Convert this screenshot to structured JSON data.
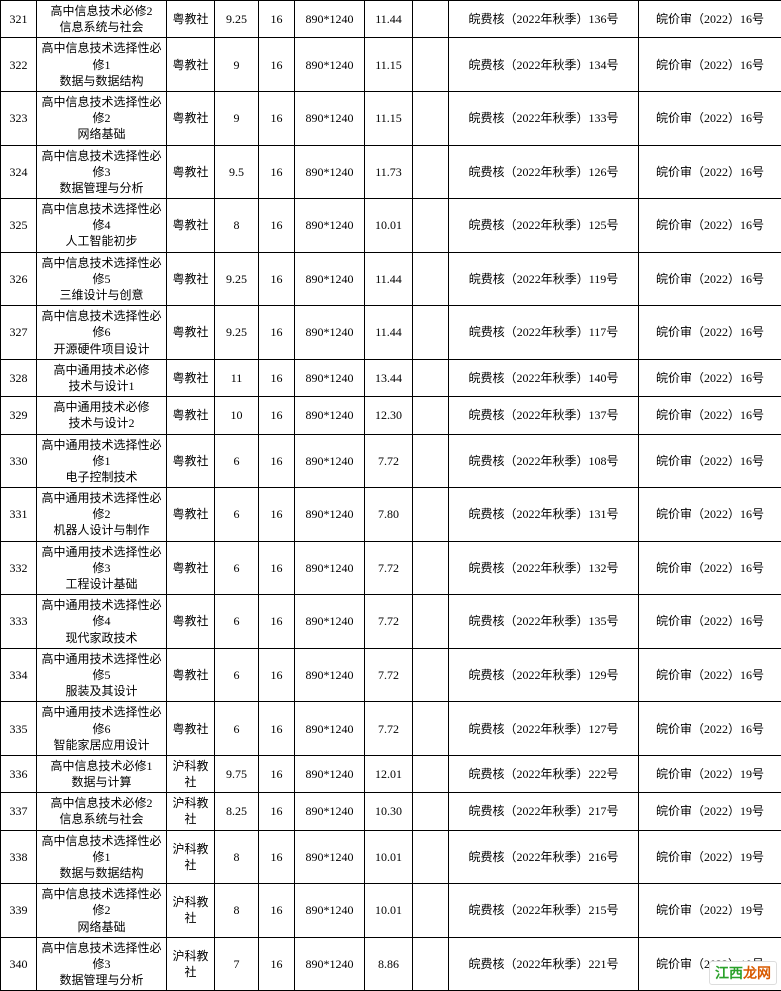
{
  "watermark": {
    "a": "江西",
    "b": "龙网"
  },
  "rows": [
    {
      "n": "321",
      "name": "高中信息技术必修2\n信息系统与社会",
      "pub": "粤教社",
      "v1": "9.25",
      "v2": "16",
      "size": "890*1240",
      "v3": "11.44",
      "blank": "",
      "doc": "皖费核（2022年秋季）136号",
      "appr": "皖价审（2022）16号"
    },
    {
      "n": "322",
      "name": "高中信息技术选择性必修1\n数据与数据结构",
      "pub": "粤教社",
      "v1": "9",
      "v2": "16",
      "size": "890*1240",
      "v3": "11.15",
      "blank": "",
      "doc": "皖费核（2022年秋季）134号",
      "appr": "皖价审（2022）16号"
    },
    {
      "n": "323",
      "name": "高中信息技术选择性必修2\n网络基础",
      "pub": "粤教社",
      "v1": "9",
      "v2": "16",
      "size": "890*1240",
      "v3": "11.15",
      "blank": "",
      "doc": "皖费核（2022年秋季）133号",
      "appr": "皖价审（2022）16号"
    },
    {
      "n": "324",
      "name": "高中信息技术选择性必修3\n数据管理与分析",
      "pub": "粤教社",
      "v1": "9.5",
      "v2": "16",
      "size": "890*1240",
      "v3": "11.73",
      "blank": "",
      "doc": "皖费核（2022年秋季）126号",
      "appr": "皖价审（2022）16号"
    },
    {
      "n": "325",
      "name": "高中信息技术选择性必修4\n人工智能初步",
      "pub": "粤教社",
      "v1": "8",
      "v2": "16",
      "size": "890*1240",
      "v3": "10.01",
      "blank": "",
      "doc": "皖费核（2022年秋季）125号",
      "appr": "皖价审（2022）16号"
    },
    {
      "n": "326",
      "name": "高中信息技术选择性必修5\n三维设计与创意",
      "pub": "粤教社",
      "v1": "9.25",
      "v2": "16",
      "size": "890*1240",
      "v3": "11.44",
      "blank": "",
      "doc": "皖费核（2022年秋季）119号",
      "appr": "皖价审（2022）16号"
    },
    {
      "n": "327",
      "name": "高中信息技术选择性必修6\n开源硬件项目设计",
      "pub": "粤教社",
      "v1": "9.25",
      "v2": "16",
      "size": "890*1240",
      "v3": "11.44",
      "blank": "",
      "doc": "皖费核（2022年秋季）117号",
      "appr": "皖价审（2022）16号"
    },
    {
      "n": "328",
      "name": "高中通用技术必修\n技术与设计1",
      "pub": "粤教社",
      "v1": "11",
      "v2": "16",
      "size": "890*1240",
      "v3": "13.44",
      "blank": "",
      "doc": "皖费核（2022年秋季）140号",
      "appr": "皖价审（2022）16号"
    },
    {
      "n": "329",
      "name": "高中通用技术必修\n技术与设计2",
      "pub": "粤教社",
      "v1": "10",
      "v2": "16",
      "size": "890*1240",
      "v3": "12.30",
      "blank": "",
      "doc": "皖费核（2022年秋季）137号",
      "appr": "皖价审（2022）16号"
    },
    {
      "n": "330",
      "name": "高中通用技术选择性必修1\n电子控制技术",
      "pub": "粤教社",
      "v1": "6",
      "v2": "16",
      "size": "890*1240",
      "v3": "7.72",
      "blank": "",
      "doc": "皖费核（2022年秋季）108号",
      "appr": "皖价审（2022）16号"
    },
    {
      "n": "331",
      "name": "高中通用技术选择性必修2\n机器人设计与制作",
      "pub": "粤教社",
      "v1": "6",
      "v2": "16",
      "size": "890*1240",
      "v3": "7.80",
      "blank": "",
      "doc": "皖费核（2022年秋季）131号",
      "appr": "皖价审（2022）16号"
    },
    {
      "n": "332",
      "name": "高中通用技术选择性必修3\n工程设计基础",
      "pub": "粤教社",
      "v1": "6",
      "v2": "16",
      "size": "890*1240",
      "v3": "7.72",
      "blank": "",
      "doc": "皖费核（2022年秋季）132号",
      "appr": "皖价审（2022）16号"
    },
    {
      "n": "333",
      "name": "高中通用技术选择性必修4\n现代家政技术",
      "pub": "粤教社",
      "v1": "6",
      "v2": "16",
      "size": "890*1240",
      "v3": "7.72",
      "blank": "",
      "doc": "皖费核（2022年秋季）135号",
      "appr": "皖价审（2022）16号"
    },
    {
      "n": "334",
      "name": "高中通用技术选择性必修5\n服装及其设计",
      "pub": "粤教社",
      "v1": "6",
      "v2": "16",
      "size": "890*1240",
      "v3": "7.72",
      "blank": "",
      "doc": "皖费核（2022年秋季）129号",
      "appr": "皖价审（2022）16号"
    },
    {
      "n": "335",
      "name": "高中通用技术选择性必修6\n智能家居应用设计",
      "pub": "粤教社",
      "v1": "6",
      "v2": "16",
      "size": "890*1240",
      "v3": "7.72",
      "blank": "",
      "doc": "皖费核（2022年秋季）127号",
      "appr": "皖价审（2022）16号"
    },
    {
      "n": "336",
      "name": "高中信息技术必修1\n数据与计算",
      "pub": "沪科教社",
      "v1": "9.75",
      "v2": "16",
      "size": "890*1240",
      "v3": "12.01",
      "blank": "",
      "doc": "皖费核（2022年秋季）222号",
      "appr": "皖价审（2022）19号"
    },
    {
      "n": "337",
      "name": "高中信息技术必修2\n信息系统与社会",
      "pub": "沪科教社",
      "v1": "8.25",
      "v2": "16",
      "size": "890*1240",
      "v3": "10.30",
      "blank": "",
      "doc": "皖费核（2022年秋季）217号",
      "appr": "皖价审（2022）19号"
    },
    {
      "n": "338",
      "name": "高中信息技术选择性必修1\n数据与数据结构",
      "pub": "沪科教社",
      "v1": "8",
      "v2": "16",
      "size": "890*1240",
      "v3": "10.01",
      "blank": "",
      "doc": "皖费核（2022年秋季）216号",
      "appr": "皖价审（2022）19号"
    },
    {
      "n": "339",
      "name": "高中信息技术选择性必修2\n网络基础",
      "pub": "沪科教社",
      "v1": "8",
      "v2": "16",
      "size": "890*1240",
      "v3": "10.01",
      "blank": "",
      "doc": "皖费核（2022年秋季）215号",
      "appr": "皖价审（2022）19号"
    },
    {
      "n": "340",
      "name": "高中信息技术选择性必修3\n数据管理与分析",
      "pub": "沪科教社",
      "v1": "7",
      "v2": "16",
      "size": "890*1240",
      "v3": "8.86",
      "blank": "",
      "doc": "皖费核（2022年秋季）221号",
      "appr": "皖价审（2022）19号"
    }
  ]
}
